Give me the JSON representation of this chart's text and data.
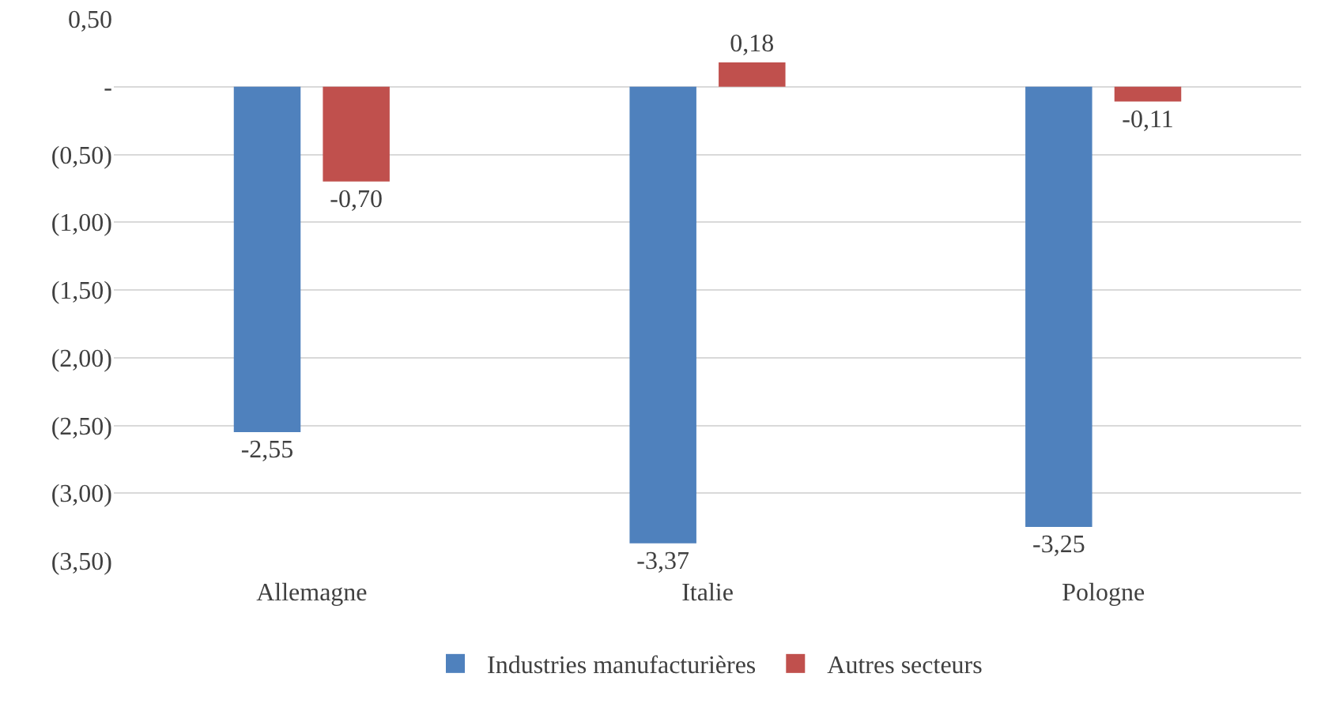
{
  "chart_data": {
    "type": "bar",
    "categories": [
      "Allemagne",
      "Italie",
      "Pologne"
    ],
    "series": [
      {
        "name": "Industries manufacturières",
        "color": "#4f81bd",
        "values": [
          -2.55,
          -3.37,
          -3.25
        ],
        "value_labels": [
          "-2,55",
          "-3,37",
          "-3,25"
        ]
      },
      {
        "name": "Autres secteurs",
        "color": "#c0504d",
        "values": [
          -0.7,
          0.18,
          -0.11
        ],
        "value_labels": [
          "-0,70",
          "0,18",
          "-0,11"
        ]
      }
    ],
    "ylim": [
      -3.5,
      0.5
    ],
    "yticks": [
      {
        "value": 0.5,
        "label": "0,50"
      },
      {
        "value": 0,
        "label": "-"
      },
      {
        "value": -0.5,
        "label": "(0,50)"
      },
      {
        "value": -1,
        "label": "(1,00)"
      },
      {
        "value": -1.5,
        "label": "(1,50)"
      },
      {
        "value": -2,
        "label": "(2,00)"
      },
      {
        "value": -2.5,
        "label": "(2,50)"
      },
      {
        "value": -3,
        "label": "(3,00)"
      },
      {
        "value": -3.5,
        "label": "(3,50)"
      }
    ],
    "grid": "y",
    "legend": "bottom"
  }
}
